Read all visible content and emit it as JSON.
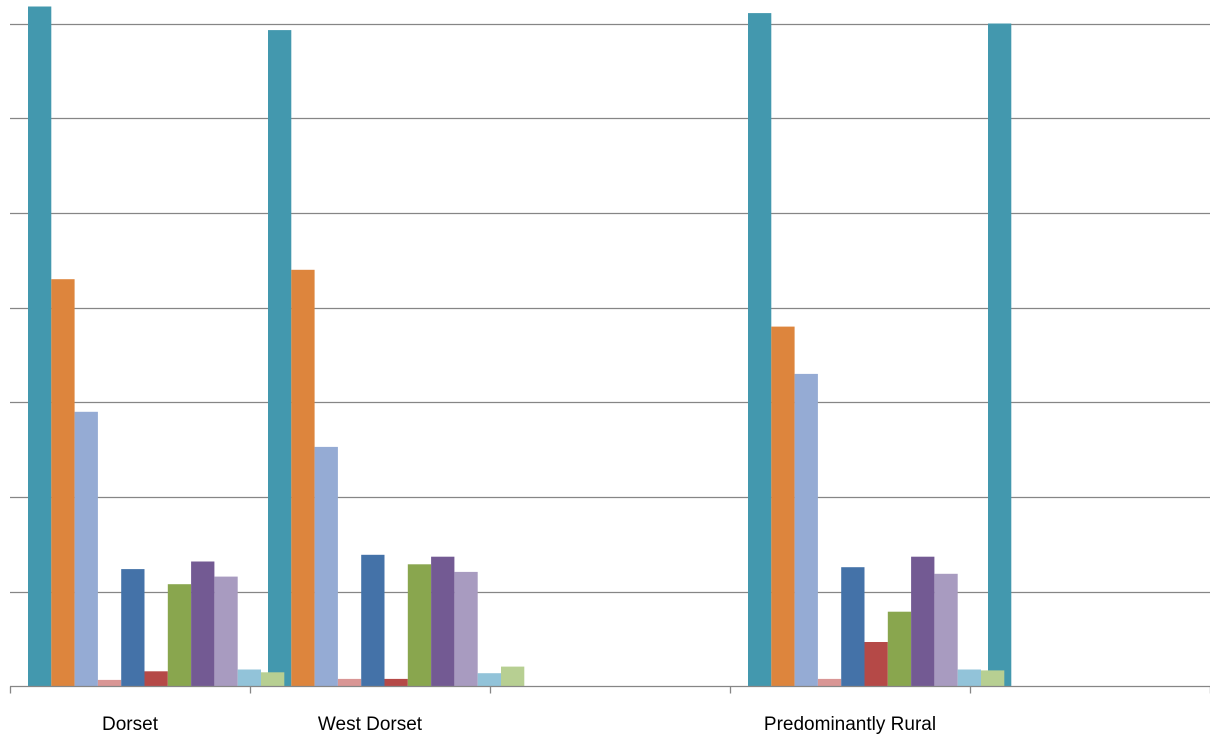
{
  "chart_data": {
    "type": "bar",
    "title": "",
    "xlabel": "",
    "ylabel": "",
    "categories": [
      "Dorset",
      "West Dorset",
      "",
      "Predominantly Rural",
      ""
    ],
    "ylim": [
      0,
      7
    ],
    "grid": true,
    "y_tick_labels_visible": false,
    "series": [
      {
        "color": "#4398ae",
        "values": [
          7.18,
          6.93,
          null,
          7.11,
          7.0
        ]
      },
      {
        "color": "#dd853d",
        "values": [
          4.3,
          4.4,
          null,
          3.8,
          null
        ]
      },
      {
        "color": "#95abd4",
        "values": [
          2.9,
          2.53,
          null,
          3.3,
          null
        ]
      },
      {
        "color": "#d99695",
        "values": [
          0.07,
          0.08,
          null,
          0.08,
          null
        ]
      },
      {
        "color": "#4472a8",
        "values": [
          1.24,
          1.39,
          null,
          1.26,
          null
        ]
      },
      {
        "color": "#b54947",
        "values": [
          0.16,
          0.08,
          null,
          0.47,
          null
        ]
      },
      {
        "color": "#89a64e",
        "values": [
          1.08,
          1.29,
          null,
          0.79,
          null
        ]
      },
      {
        "color": "#735a93",
        "values": [
          1.32,
          1.37,
          null,
          1.37,
          null
        ]
      },
      {
        "color": "#a89bc0",
        "values": [
          1.16,
          1.21,
          null,
          1.19,
          null
        ]
      },
      {
        "color": "#92c3d9",
        "values": [
          0.18,
          0.14,
          null,
          0.18,
          null
        ]
      },
      {
        "color": "#b7cf92",
        "values": [
          0.15,
          0.21,
          null,
          0.17,
          null
        ]
      }
    ]
  }
}
